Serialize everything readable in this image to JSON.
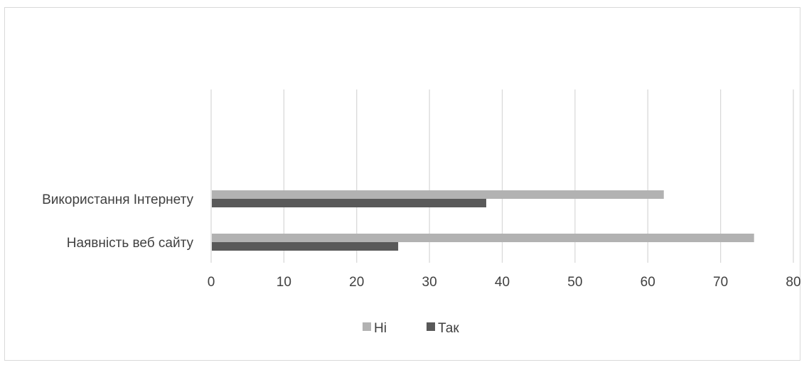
{
  "chart_data": {
    "type": "bar",
    "orientation": "horizontal",
    "title": "",
    "xlabel": "",
    "ylabel": "",
    "categories": [
      "Використання Інтернету",
      "Наявність веб сайту"
    ],
    "series": [
      {
        "name": "Ні",
        "values": [
          62.2,
          74.6
        ],
        "color": "#b2b2b2"
      },
      {
        "name": "Так",
        "values": [
          37.8,
          25.7
        ],
        "color": "#595959"
      }
    ],
    "xlim": [
      0,
      80
    ],
    "xticks": [
      0,
      10,
      20,
      30,
      40,
      50,
      60,
      70,
      80
    ],
    "grid": "vertical",
    "legend": "bottom",
    "gridColor": "#d9d9d9",
    "textColor": "#404040"
  }
}
